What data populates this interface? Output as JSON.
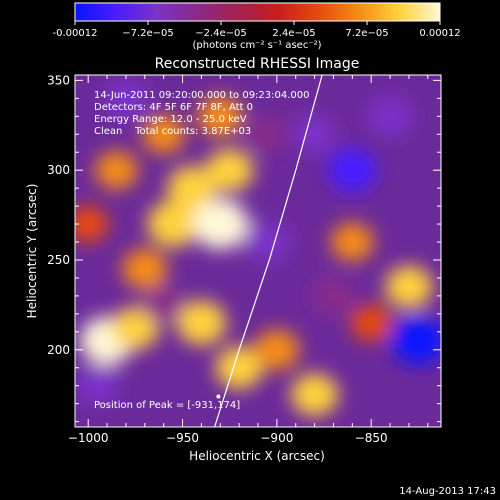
{
  "colorbar": {
    "tick_labels": [
      "-0.00012",
      "−7.2e−05",
      "−2.4e−05",
      "2.4e−05",
      "7.2e−05",
      "0.00012"
    ],
    "units": "(photons cm⁻² s⁻¹ asec⁻²)",
    "colormap": [
      "#0a14ff",
      "#4a1cff",
      "#7a32c8",
      "#8a2a8a",
      "#a42050",
      "#c81e1e",
      "#e64a10",
      "#f58c14",
      "#ffd23c",
      "#fff8d8"
    ]
  },
  "chart_data": {
    "type": "heatmap",
    "title": "Reconstructed RHESSI Image",
    "xlabel": "Heliocentric X (arcsec)",
    "ylabel": "Heliocentric Y (arcsec)",
    "xlim": [
      -1007,
      -813
    ],
    "ylim": [
      157,
      353
    ],
    "xticks": [
      -1000,
      -950,
      -900,
      -850
    ],
    "xtick_labels": [
      "−1000",
      "−950",
      "−900",
      "−850"
    ],
    "yticks": [
      200,
      250,
      300,
      350
    ],
    "ytick_labels": [
      "200",
      "250",
      "300",
      "350"
    ],
    "value_range": [
      -0.00012,
      0.00012
    ],
    "annotations": [
      "14-Jun-2011 09:20:00.000 to 09:23:04.000",
      "Detectors: 4F 5F 6F 7F 8F, Att 0",
      "Energy Range: 12.0 - 25.0 keV",
      "Clean    Total counts: 3.87E+03"
    ],
    "peak_label": "Position of Peak = [-931,174]",
    "peak": {
      "x": -931,
      "y": 174
    },
    "limb_curve": [
      {
        "x": -933,
        "y": 157
      },
      {
        "x": -920,
        "y": 200
      },
      {
        "x": -904,
        "y": 250
      },
      {
        "x": -890,
        "y": 300
      },
      {
        "x": -876,
        "y": 353
      }
    ],
    "blobs": [
      {
        "x": -990,
        "y": 205,
        "v": 0.00011
      },
      {
        "x": -975,
        "y": 212,
        "v": 8e-05
      },
      {
        "x": -955,
        "y": 270,
        "v": 0.0001
      },
      {
        "x": -945,
        "y": 290,
        "v": 9e-05
      },
      {
        "x": -930,
        "y": 270,
        "v": 0.00012
      },
      {
        "x": -925,
        "y": 300,
        "v": 8e-05
      },
      {
        "x": -930,
        "y": 330,
        "v": 7e-05
      },
      {
        "x": -960,
        "y": 320,
        "v": 6e-05
      },
      {
        "x": -985,
        "y": 300,
        "v": 6e-05
      },
      {
        "x": -940,
        "y": 215,
        "v": 9e-05
      },
      {
        "x": -920,
        "y": 190,
        "v": 8e-05
      },
      {
        "x": -900,
        "y": 200,
        "v": 7e-05
      },
      {
        "x": -880,
        "y": 175,
        "v": 8e-05
      },
      {
        "x": -860,
        "y": 260,
        "v": 6e-05
      },
      {
        "x": -830,
        "y": 235,
        "v": 8e-05
      },
      {
        "x": -850,
        "y": 215,
        "v": 5e-05
      },
      {
        "x": -970,
        "y": 245,
        "v": 7e-05
      },
      {
        "x": -1000,
        "y": 270,
        "v": 5e-05
      },
      {
        "x": -880,
        "y": 320,
        "v": -6e-05
      },
      {
        "x": -860,
        "y": 300,
        "v": -9e-05
      },
      {
        "x": -825,
        "y": 205,
        "v": -0.00011
      },
      {
        "x": -840,
        "y": 330,
        "v": -7e-05
      },
      {
        "x": -905,
        "y": 260,
        "v": -7e-05
      },
      {
        "x": -980,
        "y": 340,
        "v": -6e-05
      },
      {
        "x": -960,
        "y": 225,
        "v": -5e-05
      },
      {
        "x": -995,
        "y": 180,
        "v": -6e-05
      },
      {
        "x": -870,
        "y": 230,
        "v": -5e-05
      },
      {
        "x": -905,
        "y": 320,
        "v": -4e-05
      }
    ]
  },
  "footer": {
    "timestamp": "14-Aug-2013 17:43"
  }
}
